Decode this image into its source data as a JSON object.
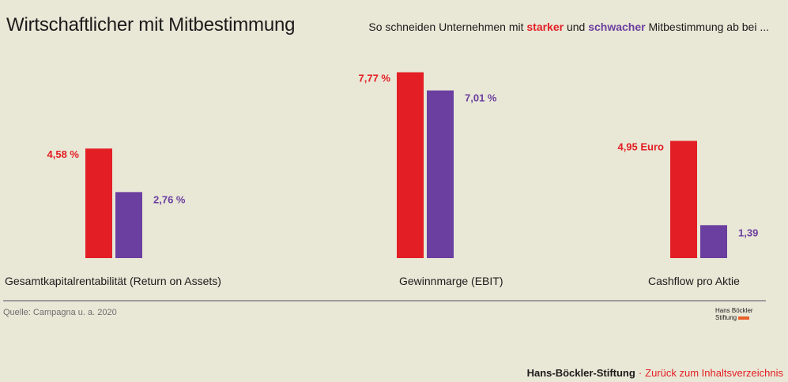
{
  "header": {
    "title": "Wirtschaftlicher mit Mitbestimmung",
    "subtitle_pre": "So schneiden Unternehmen mit ",
    "subtitle_strong": "starker",
    "subtitle_mid": " und ",
    "subtitle_weak": "schwacher",
    "subtitle_post": " Mitbestimmung ab bei ..."
  },
  "colors": {
    "strong": "#e31e24",
    "weak": "#6b3fa0"
  },
  "chart_data": {
    "type": "bar",
    "categories": [
      "Gesamtkapitalrentabilität (Return on Assets)",
      "Gewinnmarge (EBIT)",
      "Cashflow pro Aktie"
    ],
    "series": [
      {
        "values": [
          4.58,
          7.77,
          4.95
        ],
        "labels": [
          "4,58 %",
          "7,77 %",
          "4,95 Euro"
        ]
      },
      {
        "values": [
          2.76,
          7.01,
          1.39
        ],
        "labels": [
          "2,76 %",
          "7,01 %",
          "1,39"
        ]
      }
    ],
    "title": "Wirtschaftlicher mit Mitbestimmung",
    "legend_placement": "top-right"
  },
  "source": "Quelle: Campagna u. a. 2020",
  "logo": {
    "line1": "Hans Böckler",
    "line2": "Stiftung"
  },
  "footer": {
    "org": "Hans-Böckler-Stiftung",
    "separator": "·",
    "back_link": "Zurück zum Inhaltsverzeichnis"
  }
}
